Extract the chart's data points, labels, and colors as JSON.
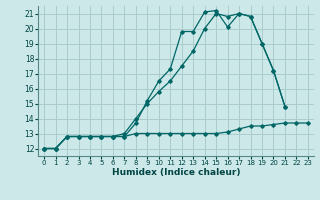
{
  "xlabel": "Humidex (Indice chaleur)",
  "background_color": "#cde8e8",
  "grid_color": "#aacccc",
  "line_color": "#006666",
  "xlim": [
    -0.5,
    23.5
  ],
  "ylim": [
    11.5,
    21.5
  ],
  "xticks": [
    0,
    1,
    2,
    3,
    4,
    5,
    6,
    7,
    8,
    9,
    10,
    11,
    12,
    13,
    14,
    15,
    16,
    17,
    18,
    19,
    20,
    21,
    22,
    23
  ],
  "yticks": [
    12,
    13,
    14,
    15,
    16,
    17,
    18,
    19,
    20,
    21
  ],
  "line1_x": [
    0,
    1,
    2,
    3,
    4,
    5,
    6,
    7,
    8,
    9,
    10,
    11,
    12,
    13,
    14,
    15,
    16,
    17,
    18,
    19,
    20,
    21
  ],
  "line1_y": [
    12,
    12,
    12.8,
    12.8,
    12.8,
    12.8,
    12.8,
    12.8,
    13.7,
    15.2,
    16.5,
    17.3,
    19.8,
    19.8,
    21.1,
    21.2,
    20.1,
    21.0,
    20.8,
    19.0,
    17.2,
    14.8
  ],
  "line2_x": [
    0,
    1,
    2,
    3,
    4,
    5,
    6,
    7,
    8,
    9,
    10,
    11,
    12,
    13,
    14,
    15,
    16,
    17,
    18,
    19,
    20,
    21
  ],
  "line2_y": [
    12,
    12,
    12.8,
    12.8,
    12.8,
    12.8,
    12.8,
    13.0,
    14.0,
    15.0,
    15.8,
    16.5,
    17.5,
    18.5,
    20.0,
    21.0,
    20.8,
    21.0,
    20.8,
    19.0,
    17.2,
    14.8
  ],
  "line3_x": [
    0,
    1,
    2,
    3,
    4,
    5,
    6,
    7,
    8,
    9,
    10,
    11,
    12,
    13,
    14,
    15,
    16,
    17,
    18,
    19,
    20,
    21,
    22,
    23
  ],
  "line3_y": [
    12,
    12,
    12.8,
    12.8,
    12.8,
    12.8,
    12.8,
    12.8,
    13.0,
    13.0,
    13.0,
    13.0,
    13.0,
    13.0,
    13.0,
    13.0,
    13.1,
    13.3,
    13.5,
    13.5,
    13.6,
    13.7,
    13.7,
    13.7
  ]
}
